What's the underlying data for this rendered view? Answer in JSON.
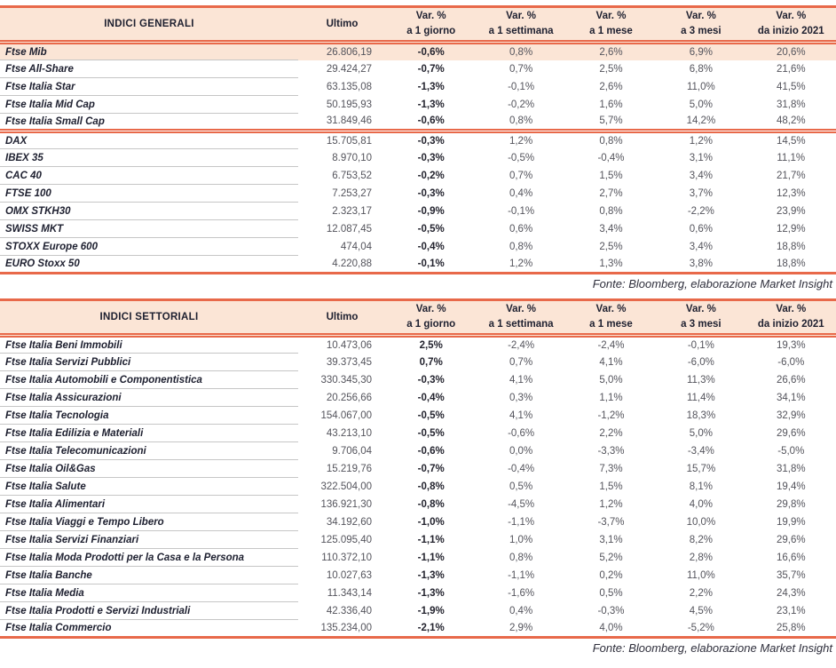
{
  "palette": {
    "accent_line": "#E8694A",
    "header_background": "#FBE5D6",
    "highlight_row_background": "#FBE5D6",
    "label_text": "#1E2030",
    "number_text": "#54545C"
  },
  "header": {
    "ultimo": "Ultimo",
    "var_label": "Var. %",
    "periods": [
      "a 1 giorno",
      "a 1 settimana",
      "a 1 mese",
      "a 3 mesi",
      "da inizio 2021"
    ]
  },
  "tables": [
    {
      "title": "INDICI GENERALI",
      "footer": "Fonte: Bloomberg, elaborazione Market Insight",
      "groups": [
        {
          "rows": [
            {
              "name": "Ftse Mib",
              "ultimo": "26.806,19",
              "d1": "-0,6%",
              "w1": "0,8%",
              "m1": "2,6%",
              "m3": "6,9%",
              "ytd": "20,6%",
              "highlight": true
            },
            {
              "name": "Ftse All-Share",
              "ultimo": "29.424,27",
              "d1": "-0,7%",
              "w1": "0,7%",
              "m1": "2,5%",
              "m3": "6,8%",
              "ytd": "21,6%"
            },
            {
              "name": "Ftse Italia Star",
              "ultimo": "63.135,08",
              "d1": "-1,3%",
              "w1": "-0,1%",
              "m1": "2,6%",
              "m3": "11,0%",
              "ytd": "41,5%"
            },
            {
              "name": "Ftse Italia Mid Cap",
              "ultimo": "50.195,93",
              "d1": "-1,3%",
              "w1": "-0,2%",
              "m1": "1,6%",
              "m3": "5,0%",
              "ytd": "31,8%"
            },
            {
              "name": "Ftse Italia Small Cap",
              "ultimo": "31.849,46",
              "d1": "-0,6%",
              "w1": "0,8%",
              "m1": "5,7%",
              "m3": "14,2%",
              "ytd": "48,2%"
            }
          ]
        },
        {
          "rows": [
            {
              "name": "DAX",
              "ultimo": "15.705,81",
              "d1": "-0,3%",
              "w1": "1,2%",
              "m1": "0,8%",
              "m3": "1,2%",
              "ytd": "14,5%"
            },
            {
              "name": "IBEX 35",
              "ultimo": "8.970,10",
              "d1": "-0,3%",
              "w1": "-0,5%",
              "m1": "-0,4%",
              "m3": "3,1%",
              "ytd": "11,1%"
            },
            {
              "name": "CAC 40",
              "ultimo": "6.753,52",
              "d1": "-0,2%",
              "w1": "0,7%",
              "m1": "1,5%",
              "m3": "3,4%",
              "ytd": "21,7%"
            },
            {
              "name": "FTSE 100",
              "ultimo": "7.253,27",
              "d1": "-0,3%",
              "w1": "0,4%",
              "m1": "2,7%",
              "m3": "3,7%",
              "ytd": "12,3%"
            },
            {
              "name": "OMX STKH30",
              "ultimo": "2.323,17",
              "d1": "-0,9%",
              "w1": "-0,1%",
              "m1": "0,8%",
              "m3": "-2,2%",
              "ytd": "23,9%"
            },
            {
              "name": "SWISS MKT",
              "ultimo": "12.087,45",
              "d1": "-0,5%",
              "w1": "0,6%",
              "m1": "3,4%",
              "m3": "0,6%",
              "ytd": "12,9%"
            },
            {
              "name": "STOXX Europe 600",
              "ultimo": "474,04",
              "d1": "-0,4%",
              "w1": "0,8%",
              "m1": "2,5%",
              "m3": "3,4%",
              "ytd": "18,8%"
            },
            {
              "name": "EURO Stoxx 50",
              "ultimo": "4.220,88",
              "d1": "-0,1%",
              "w1": "1,2%",
              "m1": "1,3%",
              "m3": "3,8%",
              "ytd": "18,8%"
            }
          ]
        }
      ]
    },
    {
      "title": "INDICI SETTORIALI",
      "footer": "Fonte: Bloomberg, elaborazione Market Insight",
      "groups": [
        {
          "rows": [
            {
              "name": "Ftse Italia Beni Immobili",
              "ultimo": "10.473,06",
              "d1": "2,5%",
              "w1": "-2,4%",
              "m1": "-2,4%",
              "m3": "-0,1%",
              "ytd": "19,3%"
            },
            {
              "name": "Ftse Italia Servizi Pubblici",
              "ultimo": "39.373,45",
              "d1": "0,7%",
              "w1": "0,7%",
              "m1": "4,1%",
              "m3": "-6,0%",
              "ytd": "-6,0%"
            },
            {
              "name": "Ftse Italia Automobili e Componentistica",
              "ultimo": "330.345,30",
              "d1": "-0,3%",
              "w1": "4,1%",
              "m1": "5,0%",
              "m3": "11,3%",
              "ytd": "26,6%"
            },
            {
              "name": "Ftse Italia Assicurazioni",
              "ultimo": "20.256,66",
              "d1": "-0,4%",
              "w1": "0,3%",
              "m1": "1,1%",
              "m3": "11,4%",
              "ytd": "34,1%"
            },
            {
              "name": "Ftse Italia Tecnologia",
              "ultimo": "154.067,00",
              "d1": "-0,5%",
              "w1": "4,1%",
              "m1": "-1,2%",
              "m3": "18,3%",
              "ytd": "32,9%"
            },
            {
              "name": "Ftse Italia Edilizia e Materiali",
              "ultimo": "43.213,10",
              "d1": "-0,5%",
              "w1": "-0,6%",
              "m1": "2,2%",
              "m3": "5,0%",
              "ytd": "29,6%"
            },
            {
              "name": "Ftse Italia Telecomunicazioni",
              "ultimo": "9.706,04",
              "d1": "-0,6%",
              "w1": "0,0%",
              "m1": "-3,3%",
              "m3": "-3,4%",
              "ytd": "-5,0%"
            },
            {
              "name": "Ftse Italia Oil&Gas",
              "ultimo": "15.219,76",
              "d1": "-0,7%",
              "w1": "-0,4%",
              "m1": "7,3%",
              "m3": "15,7%",
              "ytd": "31,8%"
            },
            {
              "name": "Ftse Italia Salute",
              "ultimo": "322.504,00",
              "d1": "-0,8%",
              "w1": "0,5%",
              "m1": "1,5%",
              "m3": "8,1%",
              "ytd": "19,4%"
            },
            {
              "name": "Ftse Italia Alimentari",
              "ultimo": "136.921,30",
              "d1": "-0,8%",
              "w1": "-4,5%",
              "m1": "1,2%",
              "m3": "4,0%",
              "ytd": "29,8%"
            },
            {
              "name": "Ftse Italia Viaggi e Tempo Libero",
              "ultimo": "34.192,60",
              "d1": "-1,0%",
              "w1": "-1,1%",
              "m1": "-3,7%",
              "m3": "10,0%",
              "ytd": "19,9%"
            },
            {
              "name": "Ftse Italia Servizi Finanziari",
              "ultimo": "125.095,40",
              "d1": "-1,1%",
              "w1": "1,0%",
              "m1": "3,1%",
              "m3": "8,2%",
              "ytd": "29,6%"
            },
            {
              "name": "Ftse Italia Moda Prodotti per la Casa e la Persona",
              "ultimo": "110.372,10",
              "d1": "-1,1%",
              "w1": "0,8%",
              "m1": "5,2%",
              "m3": "2,8%",
              "ytd": "16,6%"
            },
            {
              "name": "Ftse Italia Banche",
              "ultimo": "10.027,63",
              "d1": "-1,3%",
              "w1": "-1,1%",
              "m1": "0,2%",
              "m3": "11,0%",
              "ytd": "35,7%"
            },
            {
              "name": "Ftse Italia Media",
              "ultimo": "11.343,14",
              "d1": "-1,3%",
              "w1": "-1,6%",
              "m1": "0,5%",
              "m3": "2,2%",
              "ytd": "24,3%"
            },
            {
              "name": "Ftse Italia Prodotti e Servizi Industriali",
              "ultimo": "42.336,40",
              "d1": "-1,9%",
              "w1": "0,4%",
              "m1": "-0,3%",
              "m3": "4,5%",
              "ytd": "23,1%"
            },
            {
              "name": "Ftse Italia Commercio",
              "ultimo": "135.234,00",
              "d1": "-2,1%",
              "w1": "2,9%",
              "m1": "4,0%",
              "m3": "-5,2%",
              "ytd": "25,8%"
            }
          ]
        }
      ]
    }
  ]
}
